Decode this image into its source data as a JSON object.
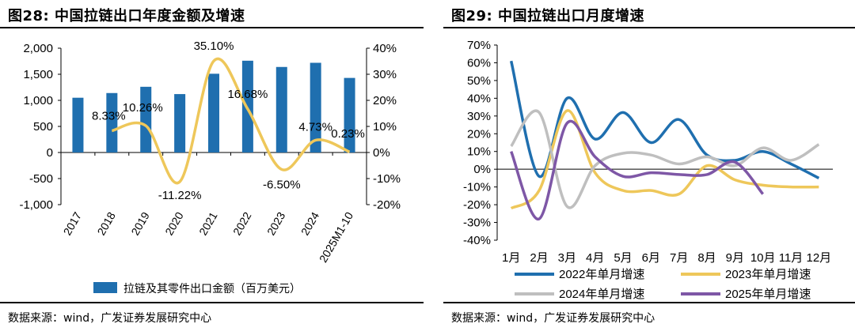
{
  "left": {
    "title": "图28:  中国拉链出口年度金额及增速",
    "source": "数据来源：wind，广发证券发展研究中心",
    "legend_label": "拉链及其零件出口金额（百万美元）"
  },
  "right": {
    "title": "图29:  中国拉链出口月度增速",
    "source": "数据来源：wind，广发证券发展研究中心"
  },
  "chart_data": [
    {
      "type": "bar",
      "title": "中国拉链出口年度金额及增速",
      "categories": [
        "2017",
        "2018",
        "2019",
        "2020",
        "2021",
        "2022",
        "2023",
        "2024",
        "2025M1-10"
      ],
      "series": [
        {
          "name": "拉链及其零件出口金额（百万美元）",
          "type": "bar",
          "axis": "left",
          "values": [
            1050,
            1140,
            1260,
            1120,
            1510,
            1760,
            1640,
            1720,
            1430
          ]
        },
        {
          "name": "增速",
          "type": "line",
          "axis": "right",
          "unit": "%",
          "values": [
            null,
            8.33,
            10.26,
            -11.22,
            35.1,
            16.68,
            -6.5,
            4.73,
            0.23
          ],
          "labels": [
            "",
            "8.33%",
            "10.26%",
            "-11.22%",
            "35.10%",
            "16.68%",
            "-6.50%",
            "4.73%",
            "0.23%"
          ]
        }
      ],
      "ylim": [
        -1000,
        2000
      ],
      "yticks": [
        -1000,
        -500,
        0,
        500,
        1000,
        1500,
        2000
      ],
      "ytick_labels": [
        "-1,000",
        "-500",
        "0",
        "500",
        "1,000",
        "1,500",
        "2,000"
      ],
      "y2lim": [
        -20,
        40
      ],
      "y2ticks": [
        -20,
        -10,
        0,
        10,
        20,
        30,
        40
      ],
      "y2tick_labels": [
        "-20%",
        "-10%",
        "0%",
        "10%",
        "20%",
        "30%",
        "40%"
      ],
      "colors": {
        "bar": "#1F6FAF",
        "line": "#EEC75A"
      },
      "legend": "bottom"
    },
    {
      "type": "line",
      "title": "中国拉链出口月度增速",
      "categories": [
        "1月",
        "2月",
        "3月",
        "4月",
        "5月",
        "6月",
        "7月",
        "8月",
        "9月",
        "10月",
        "11月",
        "12月"
      ],
      "series": [
        {
          "name": "2022年单月增速",
          "color": "#1F6FAF",
          "values": [
            61,
            -4,
            40,
            17,
            32,
            15,
            28,
            8,
            5,
            10,
            3,
            -5
          ]
        },
        {
          "name": "2023年单月增速",
          "color": "#EEC75A",
          "values": [
            -22,
            -12,
            33,
            -2,
            -12,
            -12,
            -14,
            2,
            -6,
            -9,
            -10,
            -10
          ]
        },
        {
          "name": "2024年单月增速",
          "color": "#BFBFBF",
          "values": [
            13,
            32,
            -21,
            2,
            9,
            8,
            3,
            7,
            2,
            12,
            5,
            14
          ]
        },
        {
          "name": "2025年单月增速",
          "color": "#7E57A6",
          "values": [
            10,
            -28,
            26,
            7,
            -4,
            -2,
            -3,
            -3,
            4,
            -14,
            null,
            null
          ]
        }
      ],
      "ylim": [
        -40,
        70
      ],
      "yticks": [
        -40,
        -30,
        -20,
        -10,
        0,
        10,
        20,
        30,
        40,
        50,
        60,
        70
      ],
      "ytick_labels": [
        "-40%",
        "-30%",
        "-20%",
        "-10%",
        "0%",
        "10%",
        "20%",
        "30%",
        "40%",
        "50%",
        "60%",
        "70%"
      ],
      "legend": "bottom"
    }
  ]
}
